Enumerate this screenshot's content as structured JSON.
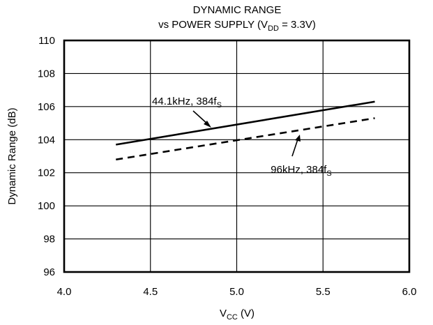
{
  "chart_data": {
    "type": "line",
    "title_line1": "DYNAMIC RANGE",
    "title_line2": {
      "prefix": "vs POWER SUPPLY (V",
      "sub": "DD",
      "suffix": " = 3.3V)"
    },
    "xlabel": {
      "main": "V",
      "sub": "CC",
      "suffix": " (V)"
    },
    "ylabel": "Dynamic Range (dB)",
    "xlim": [
      4.0,
      6.0
    ],
    "ylim": [
      96,
      110
    ],
    "x_ticks": [
      4.0,
      4.5,
      5.0,
      5.5,
      6.0
    ],
    "x_tick_labels": [
      "4.0",
      "4.5",
      "5.0",
      "5.5",
      "6.0"
    ],
    "y_ticks": [
      96,
      98,
      100,
      102,
      104,
      106,
      108,
      110
    ],
    "y_tick_labels": [
      "96",
      "98",
      "100",
      "102",
      "104",
      "106",
      "108",
      "110"
    ],
    "grid": true,
    "series": [
      {
        "name": {
          "main": "44.1kHz, 384f",
          "sub": "S"
        },
        "style": "solid",
        "color": "#000000",
        "x": [
          4.3,
          5.8
        ],
        "y": [
          103.7,
          106.3
        ]
      },
      {
        "name": {
          "main": "96kHz, 384f",
          "sub": "S"
        },
        "style": "dashed",
        "color": "#000000",
        "x": [
          4.3,
          5.8
        ],
        "y": [
          102.8,
          105.3
        ]
      }
    ]
  }
}
